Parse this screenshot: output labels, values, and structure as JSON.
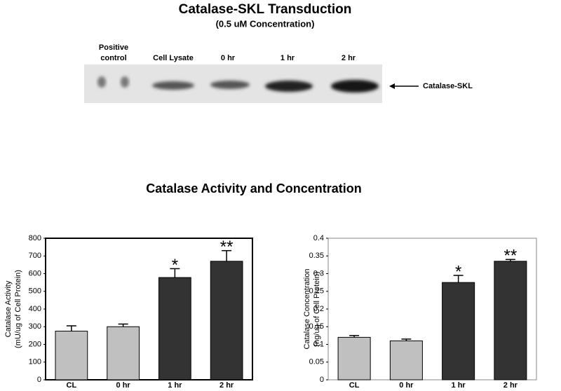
{
  "blot": {
    "title": "Catalase-SKL Transduction",
    "subtitle": "(0.5 uM Concentration)",
    "lanes": [
      [
        "Positive",
        "control"
      ],
      [
        "Cell Lysate"
      ],
      [
        "0 hr"
      ],
      [
        "1 hr"
      ],
      [
        "2 hr"
      ]
    ],
    "band_label": "Catalase-SKL"
  },
  "section_title": "Catalase Activity and Concentration",
  "chart_data": [
    {
      "type": "bar",
      "ylabel": [
        "Catalase Activity",
        "(mU/ug of Cell Protein)"
      ],
      "categories": [
        "CL",
        "0 hr",
        "1 hr",
        "2 hr"
      ],
      "values": [
        275,
        300,
        578,
        670
      ],
      "errors": [
        30,
        15,
        50,
        60
      ],
      "colors": [
        "#c0c0c0",
        "#c0c0c0",
        "#333333",
        "#333333"
      ],
      "annotations": [
        {
          "category": "1 hr",
          "text": "*"
        },
        {
          "category": "2 hr",
          "text": "**"
        }
      ],
      "ylim": [
        0,
        800
      ],
      "yticks": [
        0,
        100,
        200,
        300,
        400,
        500,
        600,
        700,
        800
      ]
    },
    {
      "type": "bar",
      "ylabel": [
        "Catalase Concentration",
        "(ng/ug of Cell Protein)"
      ],
      "categories": [
        "CL",
        "0 hr",
        "1 hr",
        "2 hr"
      ],
      "values": [
        0.12,
        0.11,
        0.275,
        0.335
      ],
      "errors": [
        0.005,
        0.005,
        0.02,
        0.005
      ],
      "colors": [
        "#c0c0c0",
        "#c0c0c0",
        "#333333",
        "#333333"
      ],
      "annotations": [
        {
          "category": "1 hr",
          "text": "*"
        },
        {
          "category": "2 hr",
          "text": "**"
        }
      ],
      "ylim": [
        0,
        0.4
      ],
      "yticks": [
        0,
        0.05,
        0.1,
        0.15,
        0.2,
        0.25,
        0.3,
        0.35,
        0.4
      ]
    }
  ]
}
